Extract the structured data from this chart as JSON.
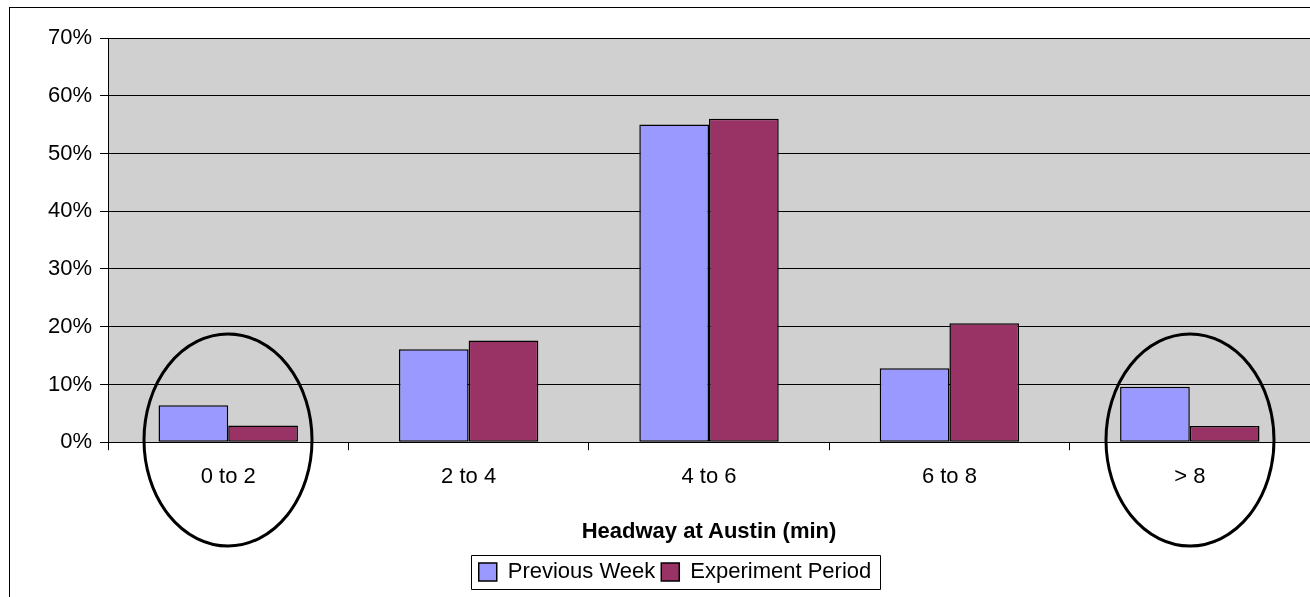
{
  "chart_data": {
    "type": "bar",
    "xlabel": "Headway at Austin (min)",
    "categories": [
      "0 to 2",
      "2 to 4",
      "4 to 6",
      "6 to 8",
      "> 8"
    ],
    "series": [
      {
        "name": "Previous Week",
        "color": "#9999ff",
        "values": [
          6.4,
          16.1,
          55.0,
          12.8,
          9.6
        ]
      },
      {
        "name": "Experiment Period",
        "color": "#993366",
        "values": [
          2.9,
          17.6,
          56.0,
          20.6,
          2.8
        ]
      }
    ],
    "ylim": [
      0,
      70
    ],
    "yticks": [
      {
        "value": 0,
        "label": "0%"
      },
      {
        "value": 10,
        "label": "10%"
      },
      {
        "value": 20,
        "label": "20%"
      },
      {
        "value": 30,
        "label": "30%"
      },
      {
        "value": 40,
        "label": "40%"
      },
      {
        "value": 50,
        "label": "50%"
      },
      {
        "value": 60,
        "label": "60%"
      },
      {
        "value": 70,
        "label": "70%"
      }
    ],
    "grid": "y",
    "legend": "bottom"
  }
}
